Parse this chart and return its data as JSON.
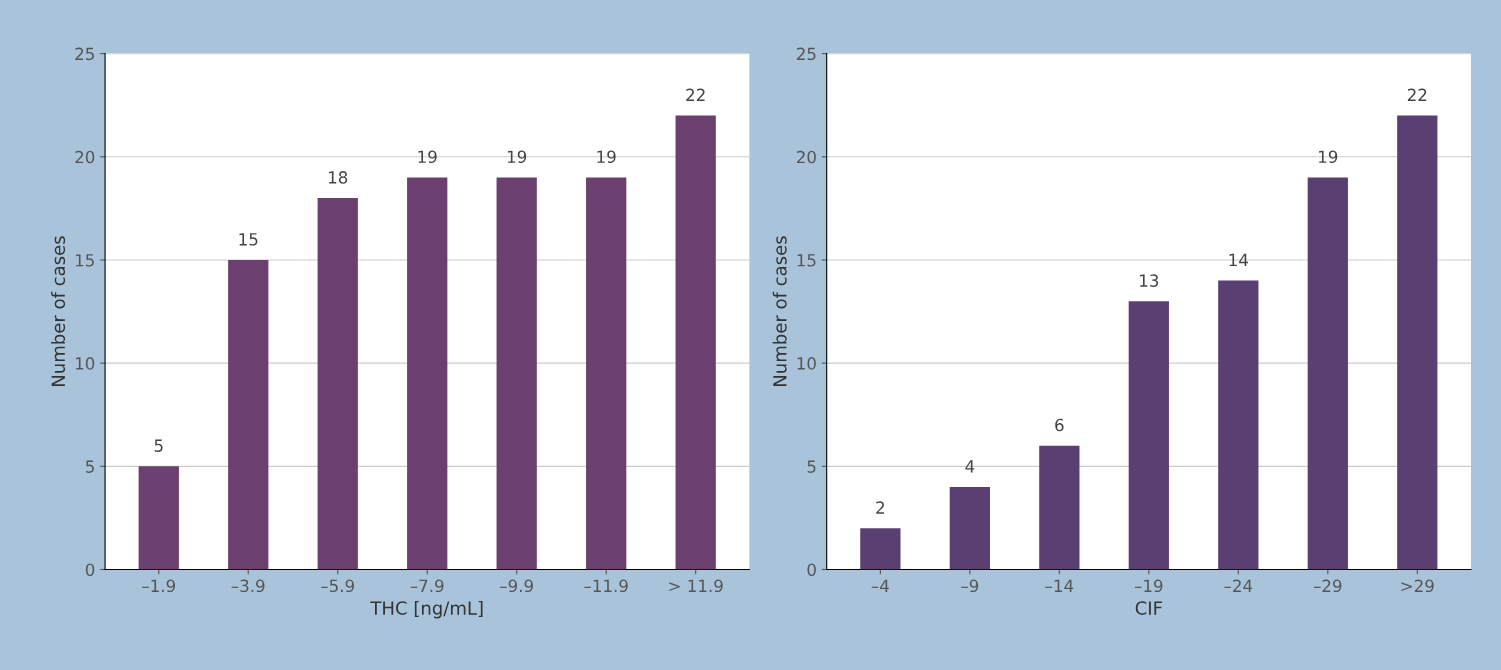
{
  "chart_data": [
    {
      "type": "bar",
      "xlabel": "THC [ng/mL]",
      "ylabel": "Number of cases",
      "categories": [
        "–1.9",
        "–3.9",
        "–5.9",
        "–7.9",
        "–9.9",
        "–11.9",
        "> 11.9"
      ],
      "values": [
        5,
        15,
        18,
        19,
        19,
        19,
        22
      ],
      "color": "#6b3f6e",
      "ylim": [
        0,
        25
      ],
      "yticks": [
        0,
        5,
        10,
        15,
        20,
        25
      ],
      "grid": "y",
      "data_labels": true
    },
    {
      "type": "bar",
      "xlabel": "CIF",
      "ylabel": "Number of cases",
      "categories": [
        "–4",
        "–9",
        "–14",
        "–19",
        "–24",
        "–29",
        ">29"
      ],
      "values": [
        2,
        4,
        6,
        13,
        14,
        19,
        22
      ],
      "color": "#5a3f72",
      "ylim": [
        0,
        25
      ],
      "yticks": [
        0,
        5,
        10,
        15,
        20,
        25
      ],
      "grid": "y",
      "data_labels": true
    }
  ]
}
